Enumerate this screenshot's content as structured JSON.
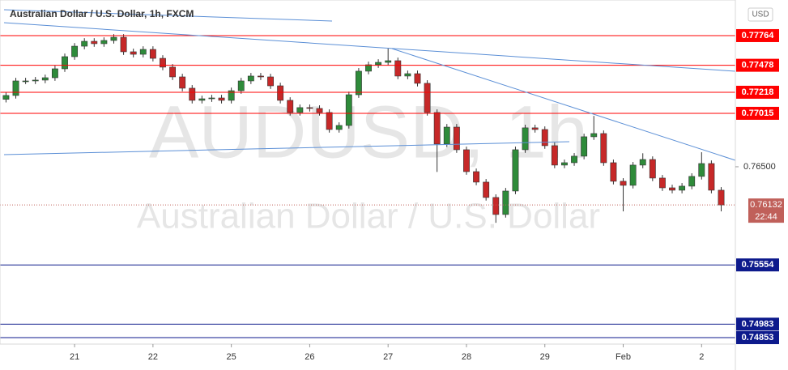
{
  "chart_data": {
    "type": "candlestick",
    "title": "Australian Dollar / U.S. Dollar, 1h, FXCM",
    "watermark_symbol": "AUDUSD, 1h",
    "watermark_name": "Australian Dollar / U.S. Dollar",
    "currency": "USD",
    "countdown": "22:44",
    "up_color": "#2e8b3a",
    "down_color": "#c62828",
    "x": [
      -21,
      -18,
      -15,
      -12,
      -9,
      -6,
      -3,
      0,
      3,
      6,
      9,
      12,
      15,
      18,
      21,
      24,
      27,
      30,
      33,
      36,
      39,
      42,
      45,
      48,
      51,
      54,
      57,
      60,
      63,
      66,
      69,
      72,
      75,
      78,
      81,
      84,
      87,
      90,
      93,
      96,
      99,
      102,
      105,
      108,
      111,
      114,
      117,
      120,
      123,
      126,
      129,
      132,
      135,
      138,
      141,
      144,
      147,
      150,
      153,
      156,
      159,
      162,
      165,
      168,
      171,
      174,
      177,
      180,
      183,
      186,
      189,
      192,
      195,
      198
    ],
    "open": [
      0.7715,
      0.77187,
      0.77327,
      0.77327,
      0.77335,
      0.77358,
      0.77444,
      0.77561,
      0.77662,
      0.77709,
      0.77686,
      0.77717,
      0.77748,
      0.77608,
      0.77584,
      0.77631,
      0.77545,
      0.7746,
      0.77366,
      0.77257,
      0.7714,
      0.77155,
      0.77163,
      0.7714,
      0.77233,
      0.77327,
      0.77374,
      0.77366,
      0.7728,
      0.7714,
      0.77023,
      0.7707,
      0.77062,
      0.77023,
      0.76859,
      0.76898,
      0.77194,
      0.77421,
      0.77483,
      0.77506,
      0.77522,
      0.77374,
      0.77397,
      0.77304,
      0.77023,
      0.76719,
      0.76882,
      0.76664,
      0.76453,
      0.76352,
      0.76204,
      0.7604,
      0.76266,
      0.76664,
      0.76875,
      0.76859,
      0.76703,
      0.76516,
      0.76539,
      0.76602,
      0.76789,
      0.7682,
      0.76539,
      0.7636,
      0.76321,
      0.76516,
      0.7657,
      0.76391,
      0.76297,
      0.76274,
      0.76313,
      0.76407,
      0.76531,
      0.76274
    ],
    "high": [
      0.77217,
      0.77357,
      0.77357,
      0.77365,
      0.77388,
      0.77474,
      0.77591,
      0.77692,
      0.77739,
      0.77739,
      0.77747,
      0.77778,
      0.77778,
      0.77638,
      0.77661,
      0.77661,
      0.77575,
      0.7749,
      0.77396,
      0.77287,
      0.77185,
      0.77193,
      0.77193,
      0.77263,
      0.77357,
      0.77404,
      0.77404,
      0.77396,
      0.7731,
      0.7717,
      0.771,
      0.771,
      0.77092,
      0.77053,
      0.76928,
      0.77224,
      0.77451,
      0.77513,
      0.77536,
      0.7764,
      0.77552,
      0.77427,
      0.77427,
      0.77334,
      0.77053,
      0.76912,
      0.76912,
      0.76694,
      0.76483,
      0.76382,
      0.76234,
      0.76296,
      0.76694,
      0.76905,
      0.76905,
      0.76889,
      0.76733,
      0.76569,
      0.76632,
      0.76819,
      0.7699,
      0.7685,
      0.76569,
      0.7639,
      0.76546,
      0.7663,
      0.766,
      0.76421,
      0.76327,
      0.76343,
      0.76437,
      0.7664,
      0.76561,
      0.76304
    ],
    "low": [
      0.7712,
      0.77157,
      0.77297,
      0.77297,
      0.77305,
      0.77328,
      0.77414,
      0.77531,
      0.77632,
      0.77656,
      0.77656,
      0.77687,
      0.77578,
      0.77554,
      0.77554,
      0.77515,
      0.7743,
      0.77336,
      0.77227,
      0.7711,
      0.7711,
      0.77125,
      0.7711,
      0.7711,
      0.77203,
      0.77297,
      0.77336,
      0.7725,
      0.7711,
      0.76993,
      0.76993,
      0.77032,
      0.76993,
      0.76829,
      0.76829,
      0.76868,
      0.77164,
      0.77391,
      0.77453,
      0.77476,
      0.77344,
      0.77344,
      0.77274,
      0.76993,
      0.7645,
      0.76689,
      0.76634,
      0.76423,
      0.76322,
      0.76174,
      0.7596,
      0.7601,
      0.76236,
      0.76634,
      0.76829,
      0.76673,
      0.76486,
      0.76486,
      0.76509,
      0.76572,
      0.76759,
      0.76509,
      0.7633,
      0.7607,
      0.76291,
      0.76486,
      0.76361,
      0.76267,
      0.76244,
      0.76244,
      0.76283,
      0.76377,
      0.76244,
      0.7607
    ],
    "close": [
      0.77187,
      0.77327,
      0.77327,
      0.77335,
      0.77358,
      0.77444,
      0.77561,
      0.77662,
      0.77709,
      0.77686,
      0.77717,
      0.77748,
      0.77608,
      0.77584,
      0.77631,
      0.77545,
      0.7746,
      0.77366,
      0.77257,
      0.7714,
      0.77155,
      0.77163,
      0.7714,
      0.77233,
      0.77327,
      0.77374,
      0.77366,
      0.7728,
      0.7714,
      0.77023,
      0.7707,
      0.77062,
      0.77023,
      0.76859,
      0.76898,
      0.77194,
      0.77421,
      0.77483,
      0.77506,
      0.77522,
      0.77374,
      0.77397,
      0.77304,
      0.77023,
      0.76719,
      0.76882,
      0.76664,
      0.76453,
      0.76352,
      0.76204,
      0.7604,
      0.76266,
      0.76664,
      0.76875,
      0.76859,
      0.76703,
      0.76516,
      0.76539,
      0.76602,
      0.76789,
      0.7682,
      0.76539,
      0.7636,
      0.76321,
      0.76516,
      0.7657,
      0.76391,
      0.76297,
      0.76274,
      0.76313,
      0.76407,
      0.76531,
      0.76274,
      0.76132
    ],
    "xlim": [
      -21.6,
      201.1
    ],
    "xticks": [
      {
        "value": 0,
        "label": "21"
      },
      {
        "value": 24,
        "label": "22"
      },
      {
        "value": 48,
        "label": "25"
      },
      {
        "value": 72,
        "label": "26"
      },
      {
        "value": 96,
        "label": "27"
      },
      {
        "value": 120,
        "label": "28"
      },
      {
        "value": 144,
        "label": "29"
      },
      {
        "value": 168,
        "label": "Feb"
      },
      {
        "value": 192,
        "label": "2"
      }
    ],
    "ylim": [
      0.74791,
      0.78068
    ],
    "yticks": [
      {
        "value": 0.765,
        "label": "0.76500"
      }
    ],
    "levels": [
      {
        "value": 0.77764,
        "color": "#ff0000"
      },
      {
        "value": 0.77478,
        "color": "#ff0000"
      },
      {
        "value": 0.77218,
        "color": "#ff0000"
      },
      {
        "value": 0.77015,
        "color": "#ff0000"
      },
      {
        "value": 0.75554,
        "color": "#0d1a8c"
      },
      {
        "value": 0.74983,
        "color": "#0d1a8c"
      },
      {
        "value": 0.74853,
        "color": "#0d1a8c"
      }
    ],
    "last_price": 0.76132,
    "last_price_color": "#c0605a"
  }
}
